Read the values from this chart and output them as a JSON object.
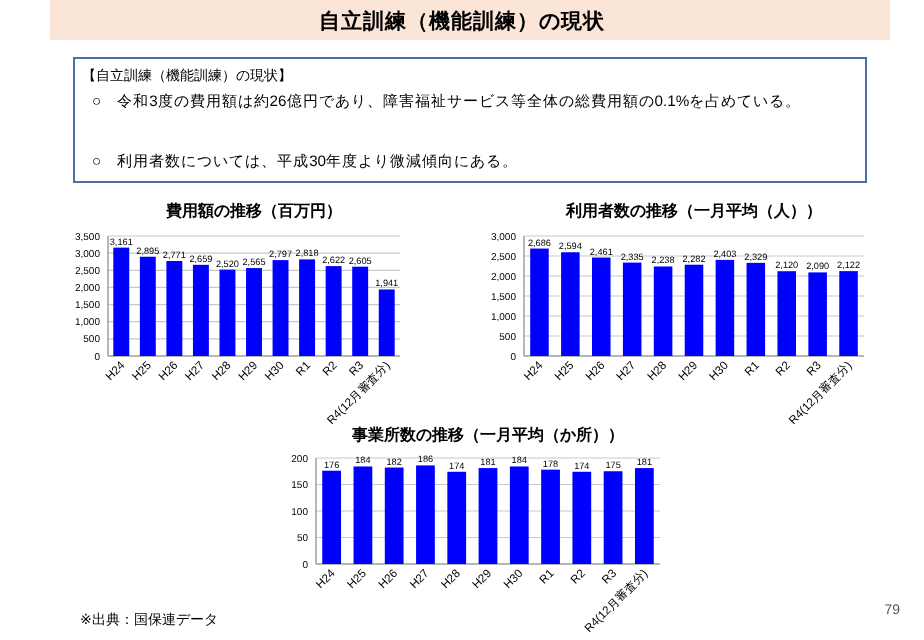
{
  "chart_data": [
    {
      "type": "other",
      "title": "自立訓練（機能訓練）の現状",
      "annotations": [
        "【自立訓練（機能訓練）の現状】",
        "○　令和3度の費用額は約26億円であり、障害福祉サービス等全体の総費用額の0.1%を占めている。",
        "○　利用者数については、平成30年度より微減傾向にある。",
        "※出典：国保連データ",
        "79"
      ]
    },
    {
      "type": "bar",
      "title": "費用額の推移（百万円）",
      "categories": [
        "H24",
        "H25",
        "H26",
        "H27",
        "H28",
        "H29",
        "H30",
        "R1",
        "R2",
        "R3",
        "R4(12月審査分)"
      ],
      "values": [
        3161,
        2895,
        2771,
        2659,
        2520,
        2565,
        2797,
        2818,
        2622,
        2605,
        1941
      ],
      "value_labels": [
        "3,161",
        "2,895",
        "2,771",
        "2,659",
        "2,520",
        "2,565",
        "2,797",
        "2,818",
        "2,622",
        "2,605",
        "1,941"
      ],
      "color": "#0000ff",
      "ylim": [
        0,
        3500
      ],
      "yticks": [
        {
          "value": 0,
          "label": "0"
        },
        {
          "value": 500,
          "label": "500"
        },
        {
          "value": 1000,
          "label": "1,000"
        },
        {
          "value": 1500,
          "label": "1,500"
        },
        {
          "value": 2000,
          "label": "2,000"
        },
        {
          "value": 2500,
          "label": "2,500"
        },
        {
          "value": 3000,
          "label": "3,000"
        },
        {
          "value": 3500,
          "label": "3,500"
        }
      ],
      "grid": "y"
    },
    {
      "type": "bar",
      "title": "利用者数の推移（一月平均（人））",
      "categories": [
        "H24",
        "H25",
        "H26",
        "H27",
        "H28",
        "H29",
        "H30",
        "R1",
        "R2",
        "R3",
        "R4(12月審査分)"
      ],
      "values": [
        2686,
        2594,
        2461,
        2335,
        2238,
        2282,
        2403,
        2329,
        2120,
        2090,
        2122
      ],
      "value_labels": [
        "2,686",
        "2,594",
        "2,461",
        "2,335",
        "2,238",
        "2,282",
        "2,403",
        "2,329",
        "2,120",
        "2,090",
        "2,122"
      ],
      "color": "#0000ff",
      "ylim": [
        0,
        3000
      ],
      "yticks": [
        {
          "value": 0,
          "label": "0"
        },
        {
          "value": 500,
          "label": "500"
        },
        {
          "value": 1000,
          "label": "1,000"
        },
        {
          "value": 1500,
          "label": "1,500"
        },
        {
          "value": 2000,
          "label": "2,000"
        },
        {
          "value": 2500,
          "label": "2,500"
        },
        {
          "value": 3000,
          "label": "3,000"
        }
      ],
      "grid": "y"
    },
    {
      "type": "bar",
      "title": "事業所数の推移（一月平均（か所））",
      "categories": [
        "H24",
        "H25",
        "H26",
        "H27",
        "H28",
        "H29",
        "H30",
        "R1",
        "R2",
        "R3",
        "R4(12月審査分)"
      ],
      "values": [
        176,
        184,
        182,
        186,
        174,
        181,
        184,
        178,
        174,
        175,
        181
      ],
      "data_labels": true,
      "color": "#0000ff",
      "ylim": [
        0,
        200
      ],
      "yticks": [
        0,
        50,
        100,
        150,
        200
      ],
      "grid": "y"
    }
  ]
}
